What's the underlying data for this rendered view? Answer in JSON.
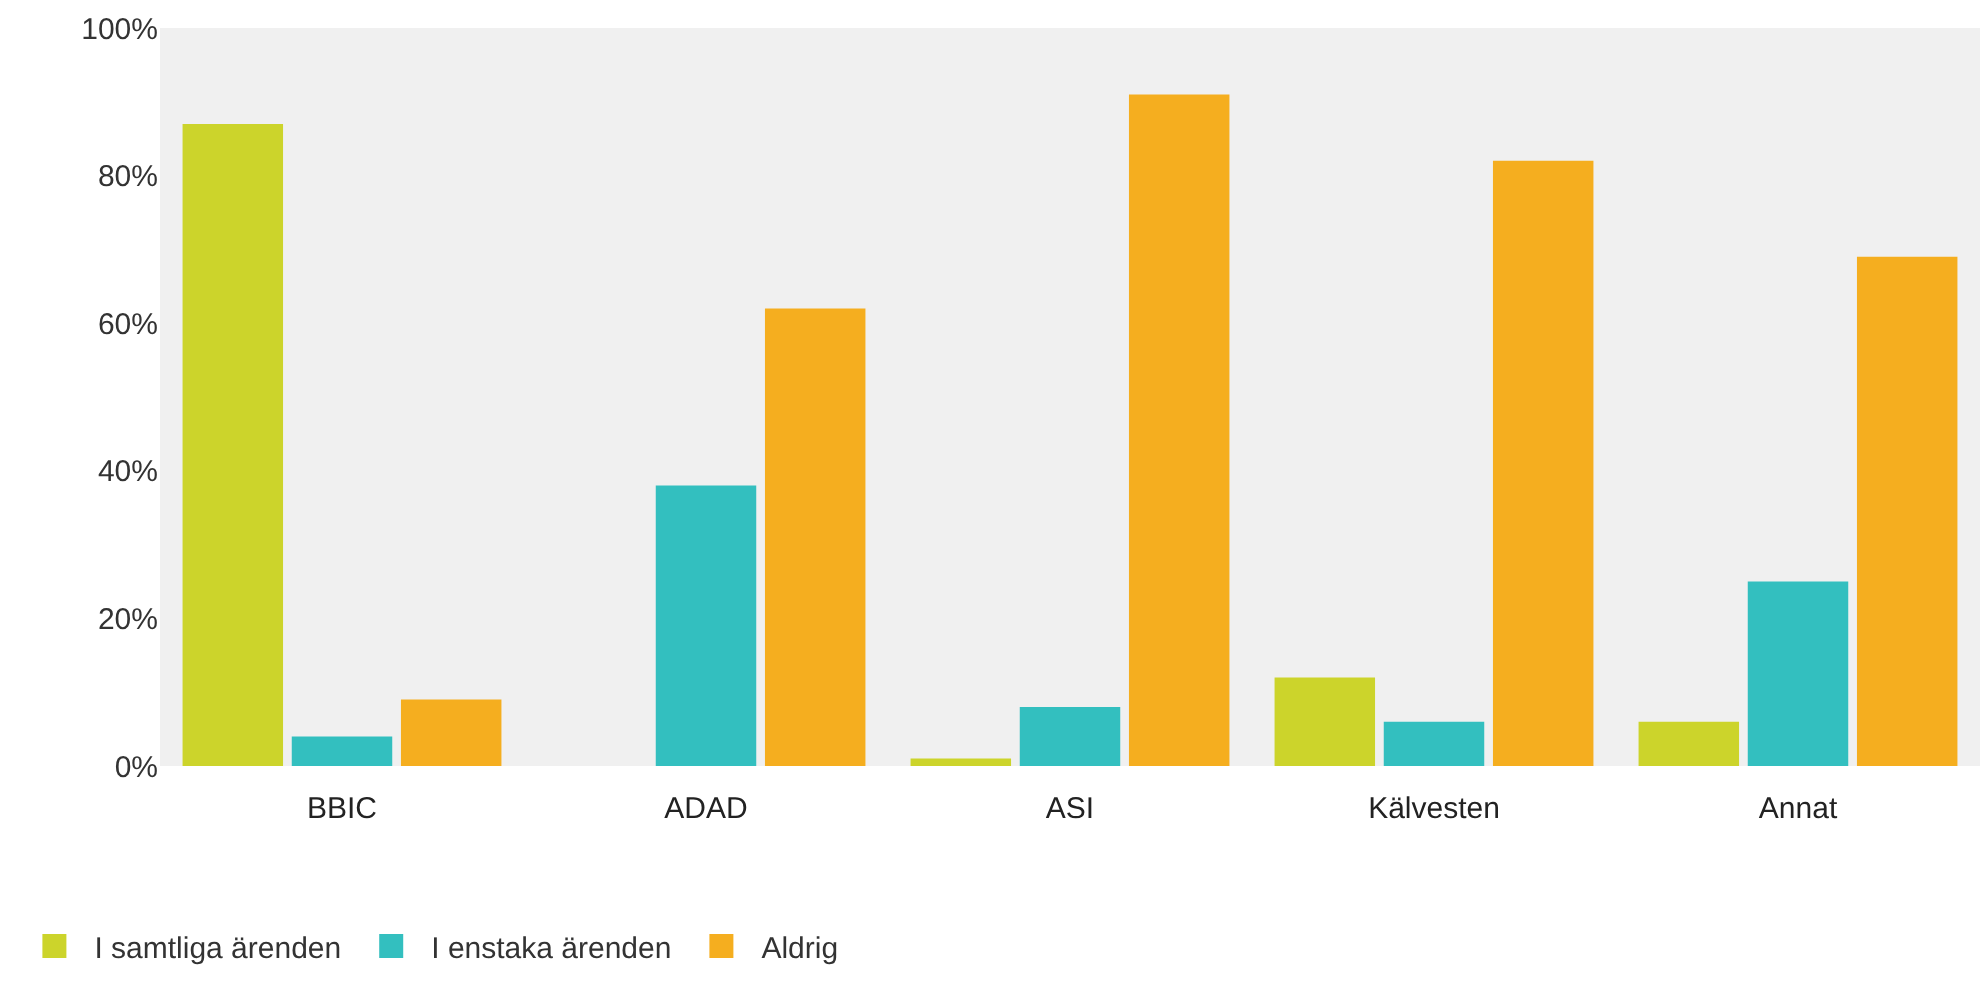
{
  "chart_data": {
    "type": "bar",
    "categories": [
      "BBIC",
      "ADAD",
      "ASI",
      "Kälvesten",
      "Annat"
    ],
    "series": [
      {
        "name": "I samtliga ärenden",
        "color": "#ccd42b",
        "values": [
          87,
          0,
          1,
          12,
          6
        ]
      },
      {
        "name": "I enstaka ärenden",
        "color": "#33bfbf",
        "values": [
          4,
          38,
          8,
          6,
          25
        ]
      },
      {
        "name": "Aldrig",
        "color": "#f5ae1f",
        "values": [
          9,
          62,
          91,
          82,
          69
        ]
      }
    ],
    "ylim": [
      0,
      100
    ],
    "yticks": [
      {
        "value": 0,
        "label": "0%"
      },
      {
        "value": 20,
        "label": "20%"
      },
      {
        "value": 40,
        "label": "40%"
      },
      {
        "value": 60,
        "label": "60%"
      },
      {
        "value": 80,
        "label": "80%"
      },
      {
        "value": 100,
        "label": "100%"
      }
    ],
    "grid": false,
    "legend": "bottom left"
  }
}
